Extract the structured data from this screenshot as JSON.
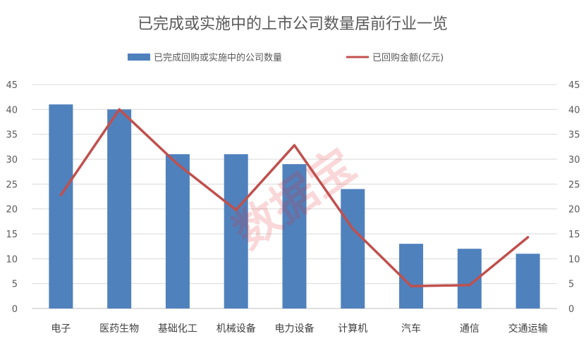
{
  "chart_data": {
    "type": "bar+line",
    "title": "已完成或实施中的上市公司数量居前行业一览",
    "categories": [
      "电子",
      "医药生物",
      "基础化工",
      "机械设备",
      "电力设备",
      "计算机",
      "汽车",
      "通信",
      "交通运输"
    ],
    "series": [
      {
        "name": "已完成回购或实施中的公司数量",
        "type": "bar",
        "axis": "left",
        "color": "#4f81bd",
        "values": [
          41,
          40,
          31,
          31,
          29,
          24,
          13,
          12,
          11
        ]
      },
      {
        "name": "已回购金额(亿元)",
        "type": "line",
        "axis": "right",
        "color": "#c0504d",
        "values": [
          22.8,
          40.0,
          29.0,
          19.8,
          32.8,
          16.0,
          4.5,
          4.7,
          14.3
        ]
      }
    ],
    "left_axis": {
      "min": 0,
      "max": 45,
      "step": 5,
      "ticks": [
        "0",
        "5",
        "10",
        "15",
        "20",
        "25",
        "30",
        "35",
        "40",
        "45"
      ]
    },
    "right_axis": {
      "min": 0,
      "max": 45,
      "step": 5,
      "ticks": [
        "0",
        "5",
        "10",
        "15",
        "20",
        "25",
        "30",
        "35",
        "40",
        "45"
      ]
    },
    "grid": true,
    "legend_position": "top",
    "watermark": "数据宝"
  }
}
